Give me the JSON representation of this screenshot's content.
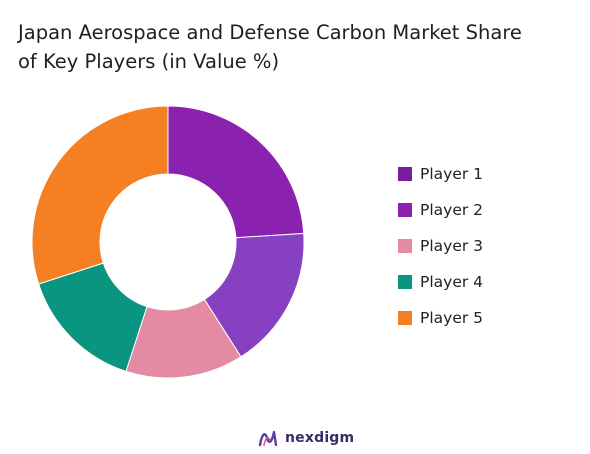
{
  "chart_data": {
    "type": "pie",
    "variant": "donut",
    "title_lines": [
      "Japan Aerospace and Defense Carbon Market Share",
      "of Key Players (in Value %)"
    ],
    "legend_position": "right",
    "categories": [
      "Player 1",
      "Player 2",
      "Player 3",
      "Player 4",
      "Player 5"
    ],
    "values": [
      24,
      17,
      14,
      15,
      30
    ],
    "colors": [
      "#8B21AF",
      "#8740C2",
      "#E48AA2",
      "#0A9580",
      "#F58023"
    ],
    "legend_colors": [
      "#7A1C9E",
      "#8B21AF",
      "#E48AA2",
      "#0A9580",
      "#F58023"
    ],
    "start_angle_deg": 0,
    "direction": "clockwise"
  },
  "brand": {
    "name": "nexdigm",
    "logo_icon": "nexdigm-logo-icon",
    "color": "#3b2a6b"
  }
}
